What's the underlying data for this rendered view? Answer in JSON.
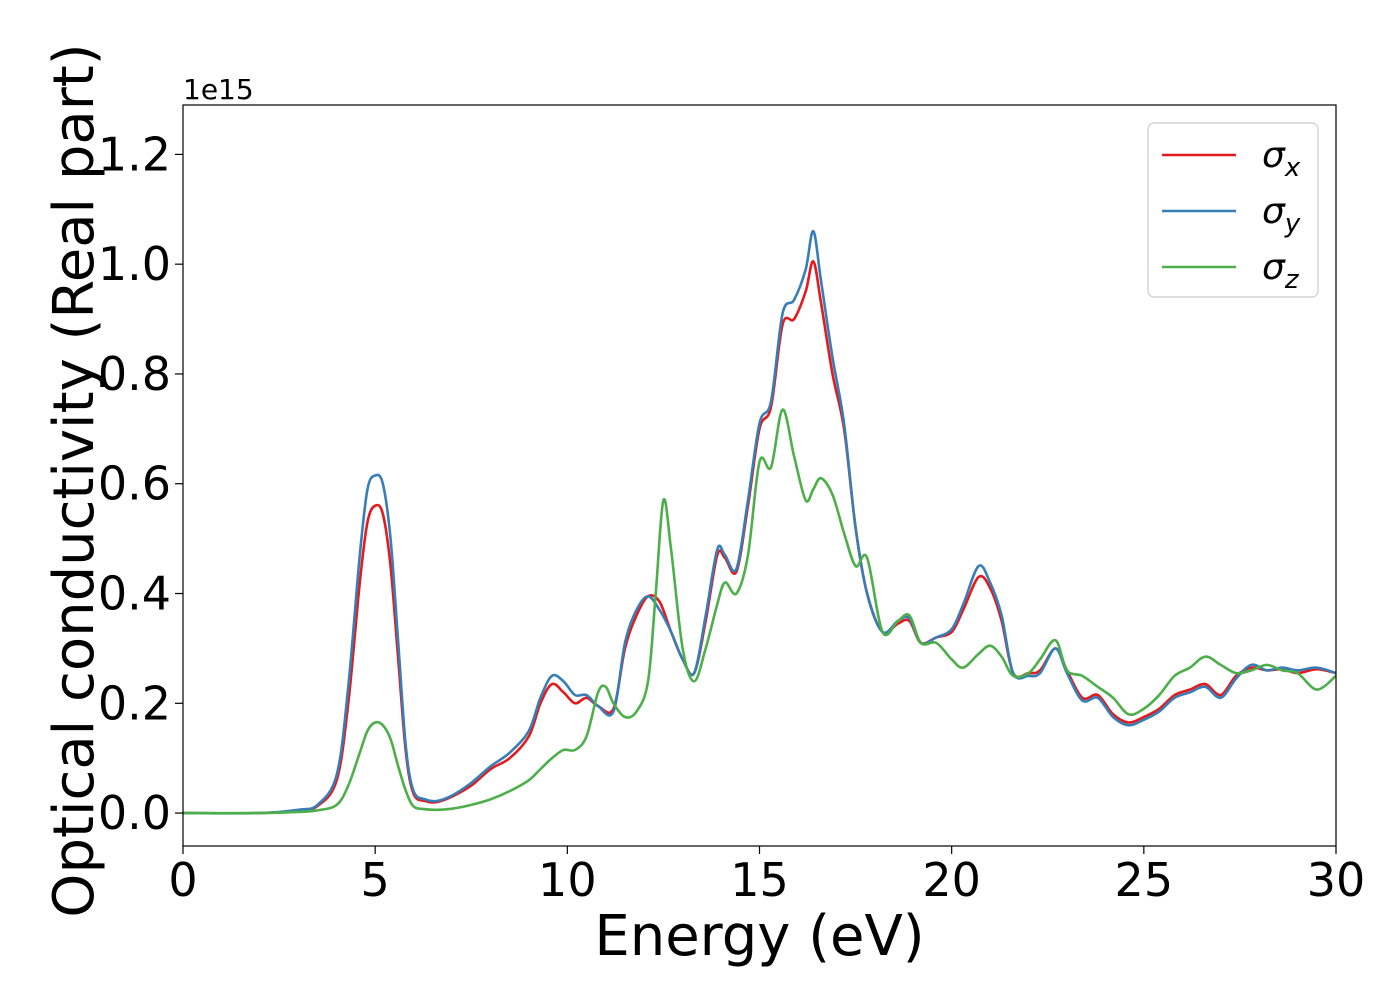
{
  "chart_data": {
    "type": "line",
    "xlabel": "Energy (eV)",
    "ylabel": "Optical conductivity (Real part)",
    "y_offset_label": "1e15",
    "xlim": [
      0,
      30
    ],
    "ylim": [
      -0.06,
      1.29
    ],
    "x_ticks": [
      "0",
      "5",
      "10",
      "15",
      "20",
      "25",
      "30"
    ],
    "x_tick_values": [
      0,
      5,
      10,
      15,
      20,
      25,
      30
    ],
    "y_ticks": [
      "0.0",
      "0.2",
      "0.4",
      "0.6",
      "0.8",
      "1.0",
      "1.2"
    ],
    "y_tick_values": [
      0.0,
      0.2,
      0.4,
      0.6,
      0.8,
      1.0,
      1.2
    ],
    "grid": false,
    "legend_position": "top-right",
    "series": [
      {
        "name": "σ",
        "subscript": "x",
        "color": "#e41a1c",
        "x": [
          0,
          2,
          3,
          3.5,
          4,
          4.3,
          4.6,
          4.8,
          5.0,
          5.2,
          5.4,
          5.6,
          5.8,
          6.0,
          6.3,
          6.6,
          7.0,
          7.5,
          8.0,
          8.5,
          9.0,
          9.3,
          9.6,
          9.9,
          10.2,
          10.5,
          10.8,
          11.2,
          11.5,
          11.8,
          12.1,
          12.4,
          12.7,
          13.0,
          13.3,
          13.6,
          13.9,
          14.1,
          14.4,
          14.7,
          15.0,
          15.3,
          15.6,
          15.9,
          16.2,
          16.4,
          16.6,
          16.9,
          17.2,
          17.5,
          17.8,
          18.2,
          18.6,
          18.9,
          19.2,
          19.6,
          20.0,
          20.3,
          20.7,
          21.0,
          21.3,
          21.6,
          22.0,
          22.3,
          22.7,
          23.0,
          23.4,
          23.8,
          24.2,
          24.6,
          25.0,
          25.4,
          25.8,
          26.2,
          26.6,
          27.0,
          27.4,
          27.8,
          28.2,
          28.6,
          29.0,
          29.5,
          30.0
        ],
        "values": [
          0.0,
          0.0,
          0.005,
          0.013,
          0.06,
          0.2,
          0.42,
          0.53,
          0.56,
          0.545,
          0.45,
          0.28,
          0.11,
          0.035,
          0.022,
          0.02,
          0.03,
          0.05,
          0.08,
          0.1,
          0.14,
          0.2,
          0.235,
          0.22,
          0.2,
          0.21,
          0.195,
          0.19,
          0.3,
          0.36,
          0.395,
          0.385,
          0.33,
          0.28,
          0.255,
          0.35,
          0.47,
          0.465,
          0.44,
          0.56,
          0.7,
          0.74,
          0.89,
          0.9,
          0.95,
          1.005,
          0.93,
          0.8,
          0.7,
          0.52,
          0.4,
          0.33,
          0.345,
          0.35,
          0.31,
          0.32,
          0.33,
          0.37,
          0.43,
          0.41,
          0.35,
          0.255,
          0.255,
          0.26,
          0.3,
          0.26,
          0.21,
          0.215,
          0.18,
          0.165,
          0.175,
          0.19,
          0.215,
          0.225,
          0.235,
          0.215,
          0.25,
          0.265,
          0.26,
          0.262,
          0.255,
          0.262,
          0.255
        ]
      },
      {
        "name": "σ",
        "subscript": "y",
        "color": "#377eb8",
        "x": [
          0,
          2,
          3,
          3.5,
          4,
          4.3,
          4.6,
          4.8,
          5.0,
          5.2,
          5.4,
          5.6,
          5.8,
          6.0,
          6.3,
          6.6,
          7.0,
          7.5,
          8.0,
          8.5,
          9.0,
          9.3,
          9.6,
          9.9,
          10.2,
          10.5,
          10.8,
          11.2,
          11.5,
          11.8,
          12.1,
          12.4,
          12.7,
          13.0,
          13.3,
          13.6,
          13.9,
          14.1,
          14.4,
          14.7,
          15.0,
          15.3,
          15.6,
          15.9,
          16.2,
          16.4,
          16.6,
          16.9,
          17.2,
          17.5,
          17.8,
          18.2,
          18.6,
          18.9,
          19.2,
          19.6,
          20.0,
          20.3,
          20.7,
          21.0,
          21.3,
          21.6,
          22.0,
          22.3,
          22.7,
          23.0,
          23.4,
          23.8,
          24.2,
          24.6,
          25.0,
          25.4,
          25.8,
          26.2,
          26.6,
          27.0,
          27.4,
          27.8,
          28.2,
          28.6,
          29.0,
          29.5,
          30.0
        ],
        "values": [
          0.0,
          0.0,
          0.006,
          0.015,
          0.07,
          0.23,
          0.47,
          0.59,
          0.615,
          0.6,
          0.5,
          0.31,
          0.12,
          0.04,
          0.025,
          0.022,
          0.032,
          0.055,
          0.085,
          0.11,
          0.15,
          0.21,
          0.25,
          0.24,
          0.215,
          0.215,
          0.195,
          0.185,
          0.31,
          0.37,
          0.395,
          0.37,
          0.33,
          0.28,
          0.255,
          0.36,
          0.48,
          0.47,
          0.445,
          0.57,
          0.71,
          0.75,
          0.91,
          0.935,
          0.99,
          1.06,
          0.97,
          0.83,
          0.71,
          0.52,
          0.4,
          0.33,
          0.35,
          0.355,
          0.31,
          0.32,
          0.335,
          0.38,
          0.45,
          0.42,
          0.36,
          0.255,
          0.25,
          0.255,
          0.3,
          0.255,
          0.205,
          0.21,
          0.175,
          0.16,
          0.17,
          0.185,
          0.21,
          0.22,
          0.23,
          0.21,
          0.245,
          0.27,
          0.26,
          0.265,
          0.26,
          0.265,
          0.255
        ]
      },
      {
        "name": "σ",
        "subscript": "z",
        "color": "#4daf4a",
        "x": [
          0,
          2,
          3,
          3.5,
          4,
          4.3,
          4.6,
          4.8,
          5.0,
          5.2,
          5.4,
          5.6,
          5.8,
          6.0,
          6.3,
          6.6,
          7.0,
          7.5,
          8.0,
          8.5,
          9.0,
          9.3,
          9.6,
          9.9,
          10.2,
          10.5,
          10.8,
          11.0,
          11.2,
          11.5,
          11.8,
          12.1,
          12.3,
          12.5,
          12.7,
          13.0,
          13.3,
          13.6,
          13.9,
          14.1,
          14.4,
          14.7,
          15.0,
          15.3,
          15.6,
          15.9,
          16.2,
          16.4,
          16.6,
          16.9,
          17.2,
          17.5,
          17.8,
          18.2,
          18.6,
          18.9,
          19.2,
          19.6,
          20.0,
          20.3,
          20.7,
          21.0,
          21.3,
          21.6,
          22.0,
          22.3,
          22.7,
          23.0,
          23.4,
          23.8,
          24.2,
          24.6,
          25.0,
          25.4,
          25.8,
          26.2,
          26.6,
          27.0,
          27.4,
          27.8,
          28.2,
          28.6,
          29.0,
          29.5,
          30.0
        ],
        "values": [
          0.0,
          0.0,
          0.002,
          0.005,
          0.015,
          0.05,
          0.11,
          0.15,
          0.165,
          0.16,
          0.135,
          0.085,
          0.04,
          0.012,
          0.007,
          0.006,
          0.008,
          0.015,
          0.025,
          0.04,
          0.06,
          0.08,
          0.1,
          0.115,
          0.115,
          0.14,
          0.22,
          0.23,
          0.2,
          0.175,
          0.185,
          0.24,
          0.4,
          0.57,
          0.48,
          0.3,
          0.24,
          0.3,
          0.38,
          0.42,
          0.4,
          0.47,
          0.64,
          0.63,
          0.735,
          0.65,
          0.57,
          0.59,
          0.61,
          0.58,
          0.51,
          0.45,
          0.465,
          0.33,
          0.35,
          0.36,
          0.31,
          0.31,
          0.28,
          0.265,
          0.29,
          0.305,
          0.285,
          0.25,
          0.255,
          0.28,
          0.315,
          0.26,
          0.25,
          0.23,
          0.21,
          0.18,
          0.19,
          0.215,
          0.25,
          0.265,
          0.285,
          0.27,
          0.255,
          0.26,
          0.27,
          0.26,
          0.255,
          0.225,
          0.25
        ]
      }
    ]
  }
}
